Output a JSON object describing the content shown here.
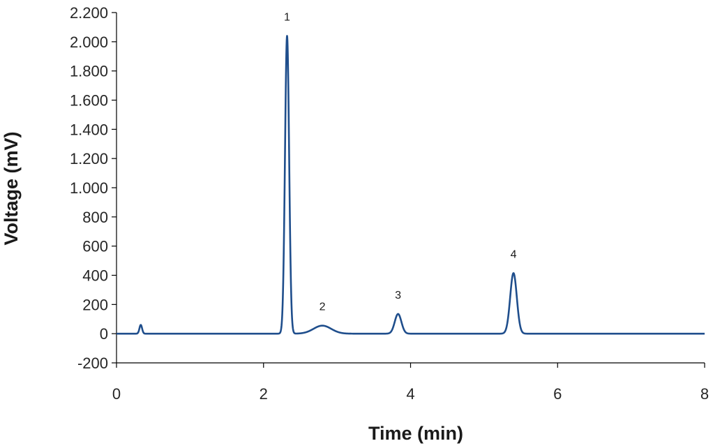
{
  "chart_data": {
    "type": "line",
    "title": "",
    "xlabel": "Time (min)",
    "ylabel": "Voltage (mV)",
    "xlim": [
      0,
      8
    ],
    "ylim": [
      -200,
      2200
    ],
    "x_ticks": [
      0,
      2,
      4,
      6,
      8
    ],
    "x_tick_labels": [
      "0",
      "2",
      "4",
      "6",
      "8"
    ],
    "y_ticks": [
      -200,
      0,
      200,
      400,
      600,
      800,
      1000,
      1200,
      1400,
      1600,
      1800,
      2000,
      2200
    ],
    "y_tick_labels": [
      "-200",
      "0",
      "200",
      "400",
      "600",
      "800",
      "1.000",
      "1.200",
      "1.400",
      "1.600",
      "1.800",
      "2.000",
      "2.200"
    ],
    "grid": false,
    "legend": "none",
    "line_color": "#1f4e8c",
    "baseline": 0,
    "peaks": [
      {
        "label": "",
        "time": 0.33,
        "height": 60,
        "width": 0.018
      },
      {
        "label": "1",
        "time": 2.32,
        "height": 2040,
        "width": 0.028
      },
      {
        "label": "2",
        "time": 2.8,
        "height": 55,
        "width": 0.12
      },
      {
        "label": "3",
        "time": 3.83,
        "height": 135,
        "width": 0.045
      },
      {
        "label": "4",
        "time": 5.4,
        "height": 415,
        "width": 0.045
      }
    ]
  }
}
